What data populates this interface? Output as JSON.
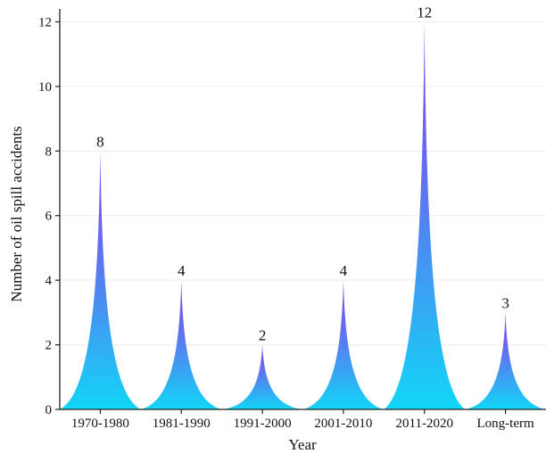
{
  "chart_data": {
    "type": "bar",
    "categories": [
      "1970-1980",
      "1981-1990",
      "1991-2000",
      "2001-2010",
      "2011-2020",
      "Long-term"
    ],
    "values": [
      8,
      4,
      2,
      4,
      12,
      3
    ],
    "data_labels": [
      "8",
      "4",
      "2",
      "4",
      "12",
      "3"
    ],
    "xlabel": "Year",
    "ylabel": "Number of oil spill accidents",
    "ylim": [
      0,
      12.4
    ],
    "yticks": [
      0,
      2,
      4,
      6,
      8,
      10,
      12
    ],
    "ytick_labels": [
      "0",
      "2",
      "4",
      "6",
      "8",
      "10",
      "12"
    ],
    "grid": true,
    "colors": {
      "top": "#8a3ff0",
      "bottom": "#12d6f7"
    }
  }
}
